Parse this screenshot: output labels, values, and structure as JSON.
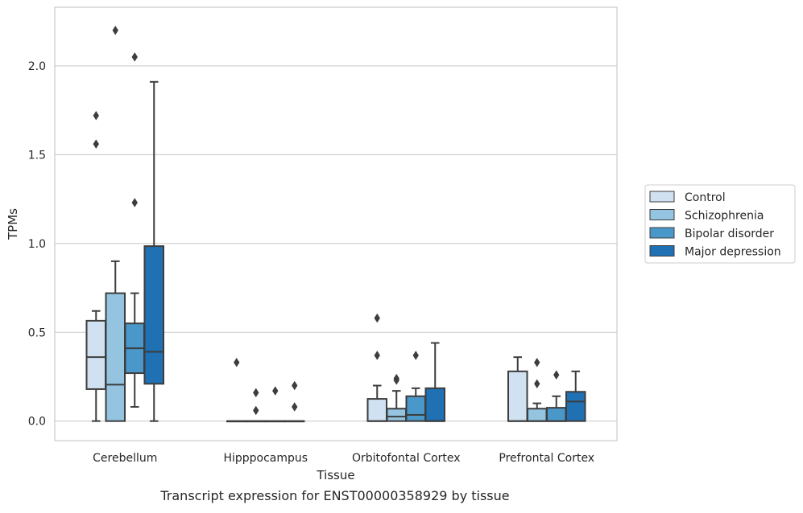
{
  "chart_data": {
    "type": "box",
    "title": "",
    "caption": "Transcript expression for ENST00000358929 by tissue",
    "xlabel": "Tissue",
    "ylabel": "TPMs",
    "ylim": [
      -0.11,
      2.33
    ],
    "yticks": [
      0.0,
      0.5,
      1.0,
      1.5,
      2.0
    ],
    "ytick_labels": [
      "0.0",
      "0.5",
      "1.0",
      "1.5",
      "2.0"
    ],
    "grid": "horizontal",
    "legend_position": "right",
    "categories": [
      "Cerebellum",
      "Hipppocampus",
      "Orbitofontal Cortex",
      "Prefrontal Cortex"
    ],
    "series": [
      {
        "name": "Control",
        "color": "#d0e1f2",
        "boxes": [
          {
            "whisker_low": 0.0,
            "q1": 0.18,
            "median": 0.36,
            "q3": 0.565,
            "whisker_high": 0.62,
            "outliers": [
              1.72,
              1.56
            ]
          },
          {
            "whisker_low": 0.0,
            "q1": 0.0,
            "median": 0.0,
            "q3": 0.0,
            "whisker_high": 0.0,
            "outliers": [
              0.33
            ]
          },
          {
            "whisker_low": 0.0,
            "q1": 0.0,
            "median": 0.0,
            "q3": 0.125,
            "whisker_high": 0.2,
            "outliers": [
              0.58,
              0.37
            ]
          },
          {
            "whisker_low": 0.0,
            "q1": 0.0,
            "median": 0.0,
            "q3": 0.28,
            "whisker_high": 0.36,
            "outliers": []
          }
        ]
      },
      {
        "name": "Schizophrenia",
        "color": "#94c4df",
        "boxes": [
          {
            "whisker_low": 0.0,
            "q1": 0.0,
            "median": 0.205,
            "q3": 0.72,
            "whisker_high": 0.9,
            "outliers": [
              2.2
            ]
          },
          {
            "whisker_low": 0.0,
            "q1": 0.0,
            "median": 0.0,
            "q3": 0.0,
            "whisker_high": 0.0,
            "outliers": [
              0.16,
              0.06
            ]
          },
          {
            "whisker_low": 0.0,
            "q1": 0.0,
            "median": 0.025,
            "q3": 0.07,
            "whisker_high": 0.17,
            "outliers": [
              0.24,
              0.23
            ]
          },
          {
            "whisker_low": 0.0,
            "q1": 0.0,
            "median": 0.0,
            "q3": 0.07,
            "whisker_high": 0.1,
            "outliers": [
              0.33,
              0.21
            ]
          }
        ]
      },
      {
        "name": "Bipolar disorder",
        "color": "#4a98c9",
        "boxes": [
          {
            "whisker_low": 0.08,
            "q1": 0.27,
            "median": 0.41,
            "q3": 0.55,
            "whisker_high": 0.72,
            "outliers": [
              2.05,
              1.23
            ]
          },
          {
            "whisker_low": 0.0,
            "q1": 0.0,
            "median": 0.0,
            "q3": 0.0,
            "whisker_high": 0.0,
            "outliers": [
              0.17
            ]
          },
          {
            "whisker_low": 0.0,
            "q1": 0.0,
            "median": 0.035,
            "q3": 0.14,
            "whisker_high": 0.185,
            "outliers": [
              0.37
            ]
          },
          {
            "whisker_low": 0.0,
            "q1": 0.0,
            "median": 0.0,
            "q3": 0.075,
            "whisker_high": 0.14,
            "outliers": [
              0.26
            ]
          }
        ]
      },
      {
        "name": "Major depression",
        "color": "#2070b4",
        "boxes": [
          {
            "whisker_low": 0.0,
            "q1": 0.21,
            "median": 0.39,
            "q3": 0.985,
            "whisker_high": 1.91,
            "outliers": []
          },
          {
            "whisker_low": 0.0,
            "q1": 0.0,
            "median": 0.0,
            "q3": 0.0,
            "whisker_high": 0.0,
            "outliers": [
              0.2,
              0.08
            ]
          },
          {
            "whisker_low": 0.0,
            "q1": 0.0,
            "median": 0.0,
            "q3": 0.185,
            "whisker_high": 0.44,
            "outliers": []
          },
          {
            "whisker_low": 0.0,
            "q1": 0.0,
            "median": 0.11,
            "q3": 0.165,
            "whisker_high": 0.28,
            "outliers": []
          }
        ]
      }
    ]
  }
}
